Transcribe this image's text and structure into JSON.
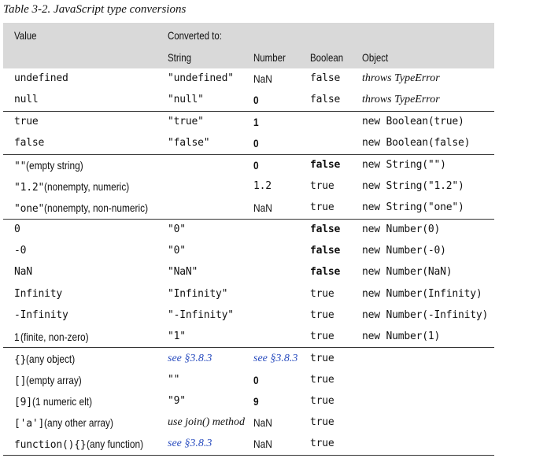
{
  "caption": "Table 3-2. JavaScript type conversions",
  "header": {
    "value": "Value",
    "converted_to": "Converted to:",
    "string": "String",
    "number": "Number",
    "boolean": "Boolean",
    "object": "Object"
  },
  "rows": [
    {
      "value": "undefined",
      "value_note": "",
      "string": "\"undefined\"",
      "number": "NaN",
      "boolean": "false",
      "object": "throws TypeError"
    },
    {
      "value": "null",
      "value_note": "",
      "string": "\"null\"",
      "number": "0",
      "boolean": "false",
      "object": "throws TypeError"
    },
    {
      "value": "true",
      "value_note": "",
      "string": "\"true\"",
      "number": "1",
      "boolean": "",
      "object": "new Boolean(true)"
    },
    {
      "value": "false",
      "value_note": "",
      "string": "\"false\"",
      "number": "0",
      "boolean": "",
      "object": "new Boolean(false)"
    },
    {
      "value": "\"\"",
      "value_note": " (empty string)",
      "string": "",
      "number": "0",
      "boolean": "false",
      "object": "new String(\"\")"
    },
    {
      "value": "\"1.2\"",
      "value_note": " (nonempty, numeric)",
      "string": "",
      "number": "1.2",
      "boolean": "true",
      "object": "new String(\"1.2\")"
    },
    {
      "value": "\"one\"",
      "value_note": " (nonempty, non-numeric)",
      "string": "",
      "number": "NaN",
      "boolean": "true",
      "object": "new String(\"one\")"
    },
    {
      "value": "0",
      "value_note": "",
      "string": "\"0\"",
      "number": "",
      "boolean": "false",
      "object": "new Number(0)"
    },
    {
      "value": "-0",
      "value_note": "",
      "string": "\"0\"",
      "number": "",
      "boolean": "false",
      "object": "new Number(-0)"
    },
    {
      "value": "NaN",
      "value_note": "",
      "string": "\"NaN\"",
      "number": "",
      "boolean": "false",
      "object": "new Number(NaN)"
    },
    {
      "value": "Infinity",
      "value_note": "",
      "string": "\"Infinity\"",
      "number": "",
      "boolean": "true",
      "object": "new Number(Infinity)"
    },
    {
      "value": "-Infinity",
      "value_note": "",
      "string": "\"-Infinity\"",
      "number": "",
      "boolean": "true",
      "object": "new Number(-Infinity)"
    },
    {
      "value": "1",
      "value_note": " (finite, non-zero)",
      "string": "\"1\"",
      "number": "",
      "boolean": "true",
      "object": "new Number(1)"
    },
    {
      "value": "{}",
      "value_note": " (any object)",
      "string": "see §3.8.3",
      "number": "see §3.8.3",
      "boolean": "true",
      "object": ""
    },
    {
      "value": "[]",
      "value_note": " (empty array)",
      "string": "\"\"",
      "number": "0",
      "boolean": "true",
      "object": ""
    },
    {
      "value": "[9]",
      "value_note": " (1 numeric elt)",
      "string": "\"9\"",
      "number": "9",
      "boolean": "true",
      "object": ""
    },
    {
      "value": "['a']",
      "value_note": " (any other array)",
      "string": "use join() method",
      "number": "NaN",
      "boolean": "true",
      "object": ""
    },
    {
      "value": "function(){}",
      "value_note": " (any function)",
      "string": "see §3.8.3",
      "number": "NaN",
      "boolean": "true",
      "object": ""
    }
  ]
}
